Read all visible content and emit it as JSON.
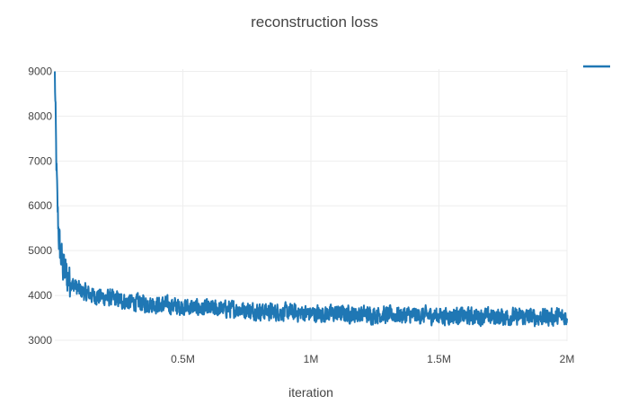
{
  "chart_data": {
    "type": "line",
    "title": "reconstruction loss",
    "xlabel": "iteration",
    "ylabel": "",
    "xlim": [
      0,
      2000000
    ],
    "ylim": [
      2980,
      9050
    ],
    "x_ticks": [
      {
        "value": 500000,
        "label": "0.5M"
      },
      {
        "value": 1000000,
        "label": "1M"
      },
      {
        "value": 1500000,
        "label": "1.5M"
      },
      {
        "value": 2000000,
        "label": "2M"
      }
    ],
    "y_ticks": [
      3000,
      4000,
      5000,
      6000,
      7000,
      8000,
      9000
    ],
    "grid": true,
    "legend": {
      "position": "top-right"
    },
    "series": [
      {
        "color": "#1f77b4",
        "x": [
          0,
          5000,
          10000,
          15000,
          20000,
          30000,
          40000,
          60000,
          80000,
          100000,
          150000,
          200000,
          300000,
          400000,
          500000,
          600000,
          700000,
          800000,
          1000000,
          1200000,
          1400000,
          1600000,
          1800000,
          2000000
        ],
        "y": [
          9000,
          7200,
          6000,
          5400,
          5000,
          4700,
          4500,
          4300,
          4200,
          4100,
          4000,
          3950,
          3850,
          3800,
          3750,
          3700,
          3700,
          3650,
          3600,
          3580,
          3560,
          3540,
          3520,
          3520
        ],
        "noise": 260
      }
    ]
  }
}
